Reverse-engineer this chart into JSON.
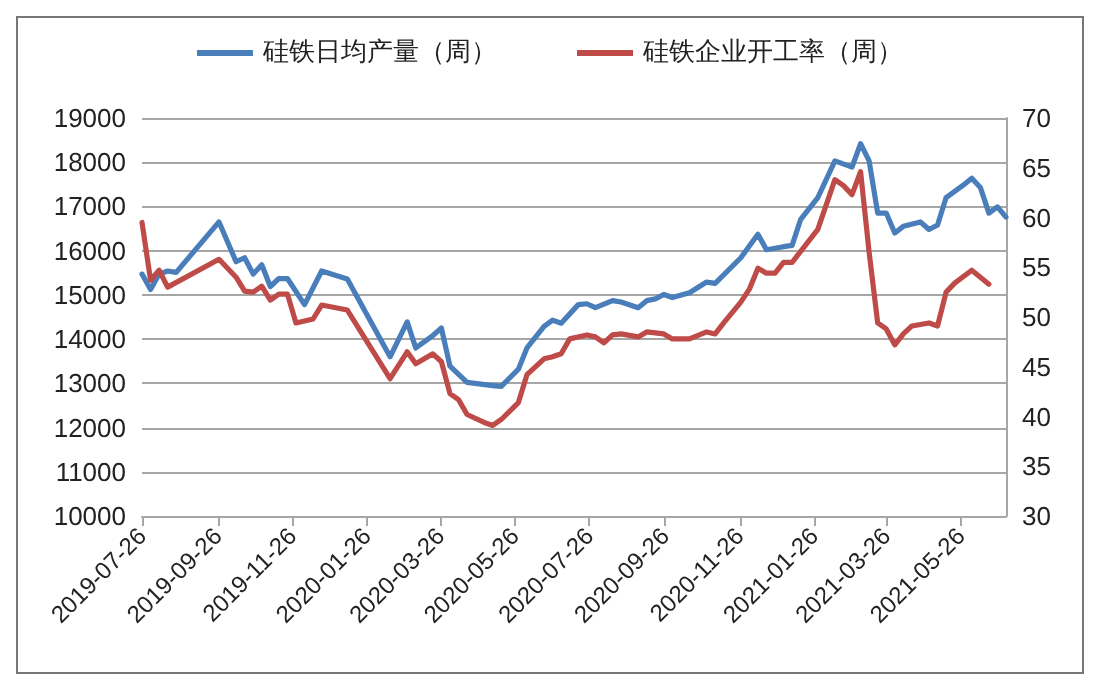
{
  "chart_data": {
    "type": "line",
    "legend": "top",
    "grid": "y",
    "marker": "none",
    "line_style": "solid",
    "xlim": [
      "2019-07-26",
      "2021-07-02"
    ],
    "xticks": [
      "2019-07-26",
      "2019-09-26",
      "2019-11-26",
      "2020-01-26",
      "2020-03-26",
      "2020-05-26",
      "2020-07-26",
      "2020-09-26",
      "2020-11-26",
      "2021-01-26",
      "2021-03-26",
      "2021-05-26"
    ],
    "ylim": [
      10000,
      19000
    ],
    "yticks": [
      10000,
      11000,
      12000,
      13000,
      14000,
      15000,
      16000,
      17000,
      18000,
      19000
    ],
    "y2lim": [
      30,
      70
    ],
    "y2ticks": [
      30,
      35,
      40,
      45,
      50,
      55,
      60,
      65,
      70
    ],
    "series": [
      {
        "name": "硅铁日均产量（周）",
        "color": "#4a7ebb",
        "x": [
          "2019-07-26",
          "2019-08-02",
          "2019-08-09",
          "2019-08-16",
          "2019-08-23",
          "2019-09-27",
          "2019-10-11",
          "2019-10-18",
          "2019-10-25",
          "2019-11-01",
          "2019-11-08",
          "2019-11-15",
          "2019-11-22",
          "2019-12-06",
          "2019-12-20",
          "2020-01-10",
          "2020-02-14",
          "2020-02-28",
          "2020-03-06",
          "2020-03-20",
          "2020-03-27",
          "2020-04-03",
          "2020-04-17",
          "2020-05-08",
          "2020-05-15",
          "2020-05-29",
          "2020-06-05",
          "2020-06-19",
          "2020-06-26",
          "2020-07-03",
          "2020-07-17",
          "2020-07-24",
          "2020-07-31",
          "2020-08-14",
          "2020-08-21",
          "2020-09-04",
          "2020-09-11",
          "2020-09-18",
          "2020-09-25",
          "2020-10-02",
          "2020-10-16",
          "2020-10-30",
          "2020-11-06",
          "2020-11-27",
          "2020-12-11",
          "2020-12-18",
          "2021-01-01",
          "2021-01-08",
          "2021-01-15",
          "2021-01-29",
          "2021-02-12",
          "2021-02-26",
          "2021-03-05",
          "2021-03-12",
          "2021-03-19",
          "2021-03-26",
          "2021-04-02",
          "2021-04-09",
          "2021-04-23",
          "2021-04-30",
          "2021-05-07",
          "2021-05-14",
          "2021-05-28",
          "2021-06-04",
          "2021-06-11",
          "2021-06-18",
          "2021-06-25",
          "2021-07-02"
        ],
        "values": [
          15470,
          15120,
          15470,
          15540,
          15510,
          16650,
          15750,
          15840,
          15470,
          15680,
          15190,
          15370,
          15370,
          14780,
          15540,
          15360,
          13600,
          14390,
          13800,
          14080,
          14250,
          13390,
          13020,
          12950,
          12930,
          13320,
          13800,
          14290,
          14430,
          14360,
          14780,
          14800,
          14710,
          14870,
          14840,
          14710,
          14870,
          14910,
          15010,
          14940,
          15050,
          15290,
          15260,
          15840,
          16370,
          16020,
          16090,
          16120,
          16710,
          17200,
          18030,
          17890,
          18420,
          18030,
          16850,
          16850,
          16400,
          16550,
          16650,
          16480,
          16580,
          17200,
          17480,
          17640,
          17430,
          16850,
          16990,
          16760
        ]
      },
      {
        "name": "硅铁企业开工率（周）",
        "color": "#be4b48",
        "axis": "y2",
        "x": [
          "2019-07-26",
          "2019-08-02",
          "2019-08-09",
          "2019-08-16",
          "2019-09-27",
          "2019-10-11",
          "2019-10-18",
          "2019-10-25",
          "2019-11-01",
          "2019-11-08",
          "2019-11-15",
          "2019-11-22",
          "2019-11-29",
          "2019-12-13",
          "2019-12-20",
          "2020-01-10",
          "2020-02-14",
          "2020-02-28",
          "2020-03-06",
          "2020-03-20",
          "2020-03-27",
          "2020-04-03",
          "2020-04-10",
          "2020-04-17",
          "2020-05-01",
          "2020-05-08",
          "2020-05-15",
          "2020-05-29",
          "2020-06-05",
          "2020-06-19",
          "2020-06-26",
          "2020-07-03",
          "2020-07-10",
          "2020-07-24",
          "2020-07-31",
          "2020-08-07",
          "2020-08-14",
          "2020-08-21",
          "2020-09-04",
          "2020-09-11",
          "2020-09-25",
          "2020-10-02",
          "2020-10-16",
          "2020-10-30",
          "2020-11-06",
          "2020-11-13",
          "2020-11-27",
          "2020-12-04",
          "2020-12-11",
          "2020-12-18",
          "2020-12-25",
          "2021-01-01",
          "2021-01-08",
          "2021-01-15",
          "2021-01-29",
          "2021-02-12",
          "2021-02-19",
          "2021-02-26",
          "2021-03-05",
          "2021-03-12",
          "2021-03-19",
          "2021-03-26",
          "2021-04-02",
          "2021-04-09",
          "2021-04-16",
          "2021-04-30",
          "2021-05-07",
          "2021-05-14",
          "2021-05-21",
          "2021-06-04",
          "2021-06-11",
          "2021-06-18"
        ],
        "values": [
          59.5,
          53.7,
          54.7,
          53.0,
          55.8,
          54.0,
          52.6,
          52.5,
          53.1,
          51.7,
          52.3,
          52.3,
          49.4,
          49.8,
          51.2,
          50.7,
          43.8,
          46.5,
          45.3,
          46.3,
          45.5,
          42.3,
          41.7,
          40.2,
          39.4,
          39.1,
          39.7,
          41.4,
          44.2,
          45.8,
          46.0,
          46.3,
          47.8,
          48.2,
          48.0,
          47.4,
          48.2,
          48.3,
          48.0,
          48.5,
          48.3,
          47.8,
          47.8,
          48.5,
          48.3,
          49.4,
          51.5,
          52.8,
          54.9,
          54.4,
          54.4,
          55.5,
          55.5,
          56.6,
          58.8,
          63.8,
          63.2,
          62.3,
          64.6,
          56.5,
          49.4,
          48.8,
          47.2,
          48.3,
          49.1,
          49.4,
          49.1,
          52.5,
          53.4,
          54.7,
          54.0,
          53.3
        ]
      }
    ]
  }
}
